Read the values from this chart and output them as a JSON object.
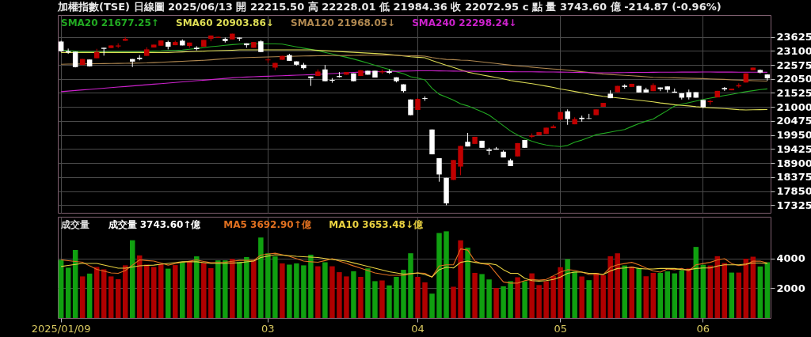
{
  "chart_data": [
    {
      "type": "candlestick",
      "title": "加權指數(TSE)  日線圖  2025/06/13  開 22215.50  高 22228.01  低 21984.36  收 22072.95  c 點  量 3743.60 億  -214.87 (-0.96%)",
      "categories": [
        "2025/01/09",
        null,
        null,
        null,
        null,
        null,
        null,
        null,
        null,
        null,
        null,
        null,
        null,
        null,
        null,
        null,
        null,
        null,
        null,
        null,
        null,
        null,
        null,
        null,
        null,
        null,
        null,
        null,
        null,
        "03",
        null,
        null,
        null,
        null,
        null,
        null,
        null,
        null,
        null,
        null,
        null,
        null,
        null,
        null,
        null,
        null,
        null,
        null,
        null,
        null,
        "04",
        null,
        null,
        null,
        null,
        null,
        null,
        null,
        null,
        null,
        null,
        null,
        null,
        null,
        null,
        null,
        null,
        null,
        null,
        null,
        "05",
        null,
        null,
        null,
        null,
        null,
        null,
        null,
        null,
        null,
        null,
        null,
        null,
        null,
        null,
        null,
        null,
        null,
        null,
        null,
        "06",
        null,
        null,
        null,
        null,
        null,
        null,
        null,
        null,
        null
      ],
      "ohlc": [
        [
          23449,
          23479,
          23060,
          23088
        ],
        [
          23088,
          23185,
          22990,
          23040
        ],
        [
          23068,
          23068,
          22480,
          22492
        ],
        [
          22570,
          22794,
          22570,
          22794
        ],
        [
          22775,
          22775,
          22510,
          22521
        ],
        [
          22824,
          23175,
          22824,
          23059
        ],
        [
          23215,
          23215,
          22921,
          23175
        ],
        [
          23205,
          23302,
          23205,
          23302
        ],
        [
          23263,
          23380,
          23205,
          23302
        ],
        [
          23478,
          23625,
          23478,
          23547
        ],
        [
          22794,
          22794,
          22492,
          22697
        ],
        [
          22843,
          22941,
          22745,
          22794
        ],
        [
          22912,
          23234,
          22912,
          23156
        ],
        [
          23224,
          23332,
          23224,
          23332
        ],
        [
          23293,
          23488,
          23293,
          23488
        ],
        [
          23430,
          23479,
          23156,
          23254
        ],
        [
          23312,
          23479,
          23312,
          23430
        ],
        [
          23479,
          23527,
          23303,
          23303
        ],
        [
          23283,
          23410,
          23215,
          23410
        ],
        [
          23215,
          23273,
          23117,
          23166
        ],
        [
          23254,
          23508,
          23254,
          23508
        ],
        [
          23547,
          23674,
          23459,
          23674
        ],
        [
          23586,
          23625,
          23586,
          23625
        ],
        [
          23547,
          23596,
          23410,
          23469
        ],
        [
          23527,
          23742,
          23527,
          23742
        ],
        [
          23596,
          23596,
          23469,
          23557
        ],
        [
          23381,
          23381,
          23215,
          23312
        ],
        [
          23215,
          23430,
          23215,
          23430
        ],
        [
          23459,
          23498,
          23058,
          23058
        ],
        [
          22746,
          22824,
          22648,
          22775
        ],
        [
          22472,
          22648,
          22374,
          22648
        ],
        [
          22765,
          22912,
          22765,
          22912
        ],
        [
          22941,
          22990,
          22726,
          22726
        ],
        [
          22706,
          22706,
          22550,
          22580
        ],
        [
          22580,
          22648,
          22404,
          22452
        ],
        [
          22140,
          22140,
          21788,
          22081
        ],
        [
          22159,
          22404,
          22159,
          22325
        ],
        [
          22404,
          22570,
          21964,
          21964
        ],
        [
          22013,
          22081,
          21906,
          21984
        ],
        [
          22159,
          22306,
          22101,
          22120
        ],
        [
          22208,
          22306,
          22208,
          22306
        ],
        [
          22257,
          22257,
          21964,
          21964
        ],
        [
          22159,
          22374,
          22159,
          22374
        ],
        [
          22355,
          22355,
          22208,
          22208
        ],
        [
          22355,
          22355,
          22101,
          22101
        ],
        [
          22296,
          22404,
          22238,
          22335
        ],
        [
          22335,
          22404,
          22238,
          22277
        ],
        [
          22110,
          22110,
          21920,
          21964
        ],
        [
          21847,
          21847,
          21544,
          21593
        ],
        [
          21280,
          21280,
          20694,
          20694
        ],
        [
          20889,
          21329,
          20889,
          21300
        ],
        [
          21329,
          21397,
          21231,
          21300
        ],
        [
          20157,
          20157,
          19228,
          19228
        ],
        [
          19082,
          19082,
          18203,
          18476
        ],
        [
          18349,
          18349,
          17323,
          17392
        ],
        [
          18271,
          19013,
          18271,
          19013
        ],
        [
          18769,
          19541,
          18447,
          19541
        ],
        [
          19697,
          20030,
          19521,
          19521
        ],
        [
          19619,
          19883,
          19619,
          19883
        ],
        [
          19736,
          19736,
          19472,
          19472
        ],
        [
          19404,
          19472,
          19209,
          19355
        ],
        [
          19443,
          19502,
          19404,
          19404
        ],
        [
          19326,
          19375,
          19111,
          19111
        ],
        [
          19004,
          19062,
          18789,
          18789
        ],
        [
          19150,
          19648,
          19150,
          19648
        ],
        [
          19765,
          19765,
          19472,
          19472
        ],
        [
          19883,
          20010,
          19834,
          19932
        ],
        [
          19941,
          20059,
          19941,
          20059
        ],
        [
          19990,
          20225,
          19990,
          20225
        ],
        [
          20206,
          20333,
          20206,
          20274
        ],
        [
          20528,
          20811,
          20528,
          20811
        ],
        [
          20840,
          20909,
          20333,
          20547
        ],
        [
          20352,
          20616,
          20352,
          20547
        ],
        [
          20596,
          20674,
          20450,
          20547
        ],
        [
          20577,
          20743,
          20547,
          20557
        ],
        [
          20694,
          20909,
          20694,
          20909
        ],
        [
          21007,
          21153,
          21007,
          21153
        ],
        [
          21495,
          21622,
          21329,
          21329
        ],
        [
          21554,
          21788,
          21554,
          21788
        ],
        [
          21798,
          21847,
          21690,
          21749
        ],
        [
          21749,
          21866,
          21749,
          21866
        ],
        [
          21788,
          21788,
          21544,
          21544
        ],
        [
          21651,
          21720,
          21544,
          21544
        ],
        [
          21593,
          21886,
          21593,
          21818
        ],
        [
          21729,
          21729,
          21593,
          21671
        ],
        [
          21769,
          21769,
          21544,
          21642
        ],
        [
          21573,
          21690,
          21534,
          21534
        ],
        [
          21515,
          21515,
          21280,
          21348
        ],
        [
          21554,
          21651,
          21280,
          21358
        ],
        [
          21554,
          21554,
          21348,
          21348
        ],
        [
          21261,
          21261,
          20958,
          20987
        ],
        [
          21182,
          21261,
          21085,
          21222
        ],
        [
          21358,
          21602,
          21358,
          21602
        ],
        [
          21710,
          21749,
          21602,
          21661
        ],
        [
          21625,
          21685,
          21625,
          21685
        ],
        [
          21769,
          21886,
          21720,
          21818
        ],
        [
          21915,
          22257,
          21915,
          22257
        ],
        [
          22374,
          22472,
          22374,
          22472
        ],
        [
          22384,
          22404,
          22257,
          22288
        ],
        [
          22215.5,
          22228.01,
          21984.36,
          22072.95
        ]
      ],
      "colors": [
        "#ffffff",
        "#ffffff",
        "#ffffff",
        "#c00000",
        "#ffffff",
        "#c00000",
        "#ffffff",
        "#c00000",
        "#c00000",
        "#c00000",
        "#ffffff",
        "#ffffff",
        "#c00000",
        "#c00000",
        "#c00000",
        "#ffffff",
        "#c00000",
        "#ffffff",
        "#c00000",
        "#ffffff",
        "#c00000",
        "#c00000",
        "#c00000",
        "#ffffff",
        "#c00000",
        "#ffffff",
        "#ffffff",
        "#c00000",
        "#ffffff",
        "#c00000",
        "#c00000",
        "#c00000",
        "#ffffff",
        "#ffffff",
        "#ffffff",
        "#ffffff",
        "#c00000",
        "#ffffff",
        "#ffffff",
        "#ffffff",
        "#c00000",
        "#ffffff",
        "#c00000",
        "#ffffff",
        "#ffffff",
        "#c00000",
        "#ffffff",
        "#ffffff",
        "#ffffff",
        "#ffffff",
        "#c00000",
        "#ffffff",
        "#ffffff",
        "#ffffff",
        "#ffffff",
        "#c00000",
        "#c00000",
        "#ffffff",
        "#c00000",
        "#ffffff",
        "#ffffff",
        "#ffffff",
        "#ffffff",
        "#ffffff",
        "#c00000",
        "#ffffff",
        "#c00000",
        "#c00000",
        "#c00000",
        "#c00000",
        "#c00000",
        "#ffffff",
        "#c00000",
        "#ffffff",
        "#ffffff",
        "#c00000",
        "#c00000",
        "#ffffff",
        "#c00000",
        "#ffffff",
        "#c00000",
        "#ffffff",
        "#ffffff",
        "#c00000",
        "#ffffff",
        "#ffffff",
        "#ffffff",
        "#ffffff",
        "#ffffff",
        "#ffffff",
        "#ffffff",
        "#c00000",
        "#c00000",
        "#ffffff",
        "#c00000",
        "#c00000",
        "#c00000",
        "#c00000",
        "#ffffff",
        "#ffffff"
      ],
      "series": [
        {
          "type": "line",
          "name": "SMA20 21677.25↑",
          "color": "#22aa22",
          "values": [
            23136,
            23110,
            23090,
            23070,
            23070,
            23070,
            23070,
            23070,
            23070,
            23070,
            23070,
            23070,
            23070,
            23090,
            23100,
            23117,
            23117,
            23130,
            23160,
            23190,
            23220,
            23254,
            23280,
            23310,
            23335,
            23351,
            23361,
            23361,
            23361,
            23361,
            23361,
            23350,
            23300,
            23250,
            23200,
            23156,
            23100,
            23040,
            22980,
            22920,
            22860,
            22794,
            22720,
            22640,
            22560,
            22480,
            22404,
            22320,
            22240,
            22130,
            22080,
            22013,
            21700,
            21476,
            21370,
            21260,
            21120,
            21040,
            20930,
            20820,
            20694,
            20500,
            20300,
            20100,
            19950,
            19820,
            19717,
            19640,
            19580,
            19540,
            19521,
            19560,
            19680,
            19760,
            19860,
            19960,
            20010,
            20060,
            20110,
            20157,
            20270,
            20380,
            20470,
            20547,
            20710,
            20870,
            21036,
            21100,
            21160,
            21220,
            21280,
            21330,
            21380,
            21427,
            21475,
            21525,
            21573,
            21610,
            21650,
            21677.25
          ]
        },
        {
          "type": "line",
          "name": "SMA60 20903.86↓",
          "color": "#dddd55",
          "values": [
            23039,
            23039,
            23039,
            23039,
            23039,
            23039,
            23039,
            23039,
            23039,
            23039,
            23039,
            23039,
            23039,
            23039,
            23039,
            23039,
            23050,
            23060,
            23070,
            23080,
            23090,
            23100,
            23107,
            23115,
            23125,
            23136,
            23136,
            23136,
            23136,
            23136,
            23136,
            23136,
            23136,
            23136,
            23136,
            23136,
            23120,
            23105,
            23090,
            23075,
            23060,
            23045,
            23030,
            23015,
            23000,
            22990,
            22965,
            22940,
            22910,
            22880,
            22860,
            22843,
            22740,
            22648,
            22560,
            22480,
            22390,
            22306,
            22250,
            22200,
            22150,
            22100,
            22050,
            21990,
            21950,
            21910,
            21870,
            21830,
            21780,
            21730,
            21671,
            21630,
            21580,
            21530,
            21480,
            21440,
            21398,
            21370,
            21340,
            21310,
            21280,
            21250,
            21220,
            21190,
            21150,
            21120,
            21085,
            21060,
            21040,
            21010,
            20987,
            20970,
            20955,
            20940,
            20920,
            20900,
            20889,
            20895,
            20900,
            20903.86
          ]
        },
        {
          "type": "line",
          "name": "SMA120 21968.05↓",
          "color": "#b08850",
          "values": [
            22599,
            22603,
            22607,
            22611,
            22615,
            22619,
            22623,
            22627,
            22631,
            22635,
            22639,
            22643,
            22648,
            22660,
            22672,
            22685,
            22698,
            22710,
            22722,
            22734,
            22746,
            22765,
            22785,
            22805,
            22825,
            22843,
            22850,
            22857,
            22864,
            22871,
            22878,
            22885,
            22892,
            22899,
            22906,
            22912,
            22915,
            22918,
            22921,
            22924,
            22927,
            22930,
            22933,
            22936,
            22939,
            22941,
            22936,
            22930,
            22922,
            22915,
            22912,
            22900,
            22850,
            22810,
            22780,
            22770,
            22755,
            22746,
            22715,
            22685,
            22655,
            22625,
            22595,
            22565,
            22540,
            22515,
            22490,
            22465,
            22440,
            22420,
            22404,
            22375,
            22350,
            22320,
            22290,
            22260,
            22230,
            22215,
            22200,
            22185,
            22170,
            22150,
            22130,
            22110,
            22100,
            22095,
            22090,
            22083,
            22076,
            22069,
            22062,
            22050,
            22040,
            22030,
            22015,
            22005,
            21993,
            21985,
            21975,
            21968.05
          ]
        },
        {
          "type": "line",
          "name": "SMA240 22298.24↓",
          "color": "#cc22cc",
          "values": [
            21573,
            21595,
            21616,
            21638,
            21659,
            21680,
            21702,
            21723,
            21745,
            21766,
            21788,
            21810,
            21831,
            21853,
            21874,
            21896,
            21917,
            21939,
            21960,
            21982,
            22003,
            22025,
            22046,
            22068,
            22090,
            22111,
            22121,
            22131,
            22141,
            22150,
            22160,
            22170,
            22180,
            22190,
            22200,
            22208,
            22222,
            22236,
            22250,
            22264,
            22278,
            22292,
            22306,
            22312,
            22318,
            22324,
            22330,
            22336,
            22342,
            22348,
            22352,
            22355,
            22352,
            22349,
            22346,
            22343,
            22340,
            22337,
            22334,
            22330,
            22326,
            22324,
            22322,
            22320,
            22318,
            22316,
            22314,
            22312,
            22310,
            22308,
            22306,
            22301,
            22296,
            22291,
            22286,
            22281,
            22277,
            22280,
            22283,
            22286,
            22289,
            22292,
            22295,
            22298,
            22300,
            22302,
            22303,
            22304,
            22305,
            22306,
            22307,
            22307,
            22306,
            22305,
            22304,
            22303,
            22302,
            22301,
            22300,
            22298.24
          ]
        }
      ],
      "ylim": [
        17040,
        24440
      ],
      "yticks": [
        17325,
        17850,
        18375,
        18900,
        19425,
        19950,
        20475,
        21000,
        21525,
        22050,
        22575,
        23100,
        23625
      ],
      "grid": true,
      "legend": "top left",
      "tick_labels": "y"
    },
    {
      "type": "bar",
      "title": "成交量",
      "categories": [
        "2025/01/09",
        null,
        null,
        null,
        null,
        null,
        null,
        null,
        null,
        null,
        null,
        null,
        null,
        null,
        null,
        null,
        null,
        null,
        null,
        null,
        null,
        null,
        null,
        null,
        null,
        null,
        null,
        null,
        null,
        "03",
        null,
        null,
        null,
        null,
        null,
        null,
        null,
        null,
        null,
        null,
        null,
        null,
        null,
        null,
        null,
        null,
        null,
        null,
        null,
        null,
        "04",
        null,
        null,
        null,
        null,
        null,
        null,
        null,
        null,
        null,
        null,
        null,
        null,
        null,
        null,
        null,
        null,
        null,
        null,
        null,
        "05",
        null,
        null,
        null,
        null,
        null,
        null,
        null,
        null,
        null,
        null,
        null,
        null,
        null,
        null,
        null,
        null,
        null,
        null,
        null,
        "06",
        null,
        null,
        null,
        null,
        null,
        null,
        null,
        null,
        null
      ],
      "series": [
        {
          "type": "bar",
          "name": "成交量 3743.60↑億",
          "colors": [
            "#10a010",
            "#10a010",
            "#10a010",
            "#b00000",
            "#10a010",
            "#b00000",
            "#b00000",
            "#b00000",
            "#b00000",
            "#b00000",
            "#10a010",
            "#b00000",
            "#b00000",
            "#b00000",
            "#b00000",
            "#10a010",
            "#b00000",
            "#10a010",
            "#b00000",
            "#10a010",
            "#b00000",
            "#b00000",
            "#10a010",
            "#10a010",
            "#b00000",
            "#10a010",
            "#10a010",
            "#b00000",
            "#10a010",
            "#10a010",
            "#10a010",
            "#b00000",
            "#10a010",
            "#10a010",
            "#10a010",
            "#10a010",
            "#b00000",
            "#10a010",
            "#b00000",
            "#b00000",
            "#b00000",
            "#10a010",
            "#b00000",
            "#10a010",
            "#10a010",
            "#b00000",
            "#10a010",
            "#10a010",
            "#10a010",
            "#10a010",
            "#b00000",
            "#b00000",
            "#10a010",
            "#10a010",
            "#10a010",
            "#b00000",
            "#b00000",
            "#10a010",
            "#b00000",
            "#10a010",
            "#10a010",
            "#b00000",
            "#10a010",
            "#10a010",
            "#b00000",
            "#10a010",
            "#b00000",
            "#b00000",
            "#b00000",
            "#b00000",
            "#b00000",
            "#10a010",
            "#10a010",
            "#b00000",
            "#10a010",
            "#b00000",
            "#b00000",
            "#b00000",
            "#b00000",
            "#10a010",
            "#b00000",
            "#10a010",
            "#b00000",
            "#b00000",
            "#10a010",
            "#10a010",
            "#10a010",
            "#10a010",
            "#b00000",
            "#10a010",
            "#10a010",
            "#b00000",
            "#b00000",
            "#b00000",
            "#10a010",
            "#b00000",
            "#b00000",
            "#b00000",
            "#10a010",
            "#10a010"
          ],
          "values": [
            3903,
            3380,
            4570,
            2794,
            2984,
            3427,
            3270,
            2794,
            2604,
            3538,
            5222,
            4204,
            3586,
            3427,
            3618,
            3316,
            3554,
            3777,
            3824,
            4141,
            3697,
            3348,
            3872,
            3872,
            3967,
            3777,
            4094,
            3872,
            5411,
            4348,
            4141,
            3665,
            3586,
            3665,
            3538,
            4252,
            3475,
            3745,
            3475,
            3078,
            2794,
            3142,
            2762,
            3332,
            2475,
            2523,
            2190,
            2762,
            3237,
            4348,
            2762,
            2396,
            1638,
            5708,
            5823,
            2099,
            5217,
            4723,
            3031,
            2951,
            2590,
            2015,
            2132,
            2475,
            2737,
            2475,
            2999,
            2213,
            2475,
            2818,
            3413,
            3951,
            3132,
            2789,
            2542,
            3031,
            2870,
            4151,
            4346,
            3527,
            3461,
            3361,
            2804,
            3031,
            3031,
            3132,
            2999,
            3199,
            3327,
            4774,
            3575,
            3527,
            4151,
            3689,
            3051,
            3051,
            3984,
            4117,
            3461,
            3743.6
          ]
        },
        {
          "type": "line",
          "name": "MA5 3692.90↑億",
          "color": "#e07020",
          "values": [
            3903,
            3850,
            3800,
            3745,
            3500,
            3270,
            3150,
            3030,
            3000,
            3189,
            3550,
            3903,
            3860,
            3824,
            3690,
            3554,
            3650,
            3745,
            3820,
            3903,
            3800,
            3713,
            3730,
            3745,
            3810,
            3872,
            3872,
            3872,
            4221,
            4290,
            4348,
            4250,
            4141,
            3980,
            3824,
            3780,
            3745,
            3860,
            3983,
            3820,
            3665,
            3500,
            3348,
            3190,
            3030,
            2950,
            2870,
            2870,
            2870,
            2950,
            3030,
            2999,
            2754,
            3493,
            3575,
            3575,
            4642,
            4560,
            3821,
            3657,
            3575,
            2999,
            2426,
            2344,
            2344,
            2508,
            2590,
            2541,
            2590,
            2836,
            3082,
            3246,
            3197,
            3082,
            2918,
            2918,
            2918,
            3410,
            3575,
            3657,
            3739,
            3575,
            3362,
            3164,
            3082,
            3295,
            3246,
            3328,
            3164,
            3575,
            3657,
            3739,
            3903,
            3985,
            3657,
            3526,
            3575,
            3821,
            3821,
            3692.9
          ]
        },
        {
          "type": "line",
          "name": "MA10 3653.48↓億",
          "color": "#e8d040",
          "values": [
            3460,
            3530,
            3600,
            3665,
            3665,
            3665,
            3560,
            3450,
            3348,
            3348,
            3430,
            3506,
            3530,
            3554,
            3610,
            3665,
            3720,
            3777,
            3777,
            3777,
            3720,
            3665,
            3665,
            3665,
            3690,
            3713,
            3770,
            3824,
            4062,
            4160,
            4253,
            4220,
            4180,
            4141,
            4115,
            4090,
            4062,
            4000,
            3935,
            3880,
            3824,
            3700,
            3586,
            3470,
            3348,
            3230,
            3110,
            3030,
            2950,
            2990,
            3030,
            2918,
            2754,
            3246,
            3410,
            3362,
            3739,
            3821,
            3739,
            3657,
            3657,
            3575,
            3246,
            2999,
            2999,
            2672,
            2508,
            2475,
            2508,
            2590,
            2754,
            2999,
            3082,
            3082,
            2999,
            2999,
            2918,
            3164,
            3328,
            3362,
            3410,
            3328,
            3295,
            3295,
            3328,
            3328,
            3328,
            3246,
            3246,
            3328,
            3362,
            3362,
            3493,
            3575,
            3575,
            3575,
            3624,
            3690,
            3690,
            3653.48
          ]
        }
      ],
      "ylim": [
        0,
        6800
      ],
      "yticks": [
        2000,
        4000
      ],
      "grid": true,
      "legend": "top left"
    }
  ]
}
